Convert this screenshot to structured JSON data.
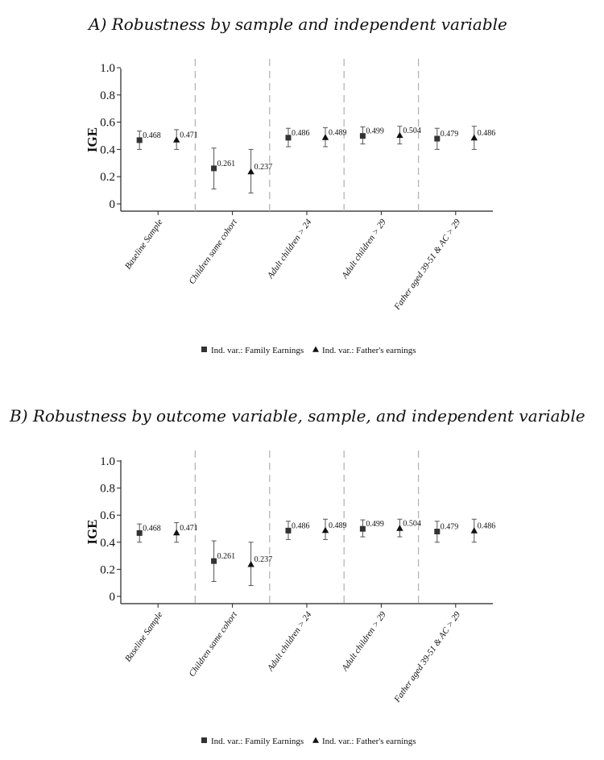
{
  "chart_data": [
    {
      "type": "scatter",
      "title": "A) Robustness by sample and independent variable",
      "xlabel": "",
      "ylabel": "IGE",
      "ylim": [
        0,
        1.0
      ],
      "yticks": [
        "0",
        "0.2",
        "0.4",
        "0.6",
        "0.8",
        "1.0"
      ],
      "categories": [
        "Baseline Sample",
        "Children same cohort",
        "Adult children > 24",
        "Adult children > 29",
        "Father aged 39-51 & AC > 29"
      ],
      "series": [
        {
          "name": "Ind. var.: Family Earnings",
          "marker": "square",
          "values": [
            0.468,
            0.261,
            0.486,
            0.499,
            0.479
          ],
          "labels": [
            "0.468",
            "0.261",
            "0.486",
            "0.499",
            "0.479"
          ],
          "ci_low": [
            0.4,
            0.11,
            0.42,
            0.44,
            0.4
          ],
          "ci_high": [
            0.535,
            0.41,
            0.555,
            0.565,
            0.555
          ]
        },
        {
          "name": "Ind. var.: Father's earnings",
          "marker": "triangle",
          "values": [
            0.471,
            0.237,
            0.489,
            0.504,
            0.486
          ],
          "labels": [
            "0.471",
            "0.237",
            "0.489",
            "0.504",
            "0.486"
          ],
          "ci_low": [
            0.4,
            0.08,
            0.42,
            0.44,
            0.4
          ],
          "ci_high": [
            0.545,
            0.4,
            0.56,
            0.57,
            0.57
          ]
        }
      ],
      "grid": false,
      "separators": "dashed-vertical",
      "legend": "bottom"
    },
    {
      "type": "scatter",
      "title": "B) Robustness by outcome variable, sample, and independent variable",
      "xlabel": "",
      "ylabel": "IGE",
      "ylim": [
        0,
        1.0
      ],
      "yticks": [
        "0",
        "0.2",
        "0.4",
        "0.6",
        "0.8",
        "1.0"
      ],
      "categories": [
        "Baseline Sample",
        "Children same cohort",
        "Adult children > 24",
        "Adult children > 29",
        "Father aged 39-51 & AC > 29"
      ],
      "series": [
        {
          "name": "Ind. var.: Family Earnings",
          "marker": "square",
          "values": [
            0.468,
            0.261,
            0.486,
            0.499,
            0.479
          ],
          "labels": [
            "0.468",
            "0.261",
            "0.486",
            "0.499",
            "0.479"
          ],
          "ci_low": [
            0.4,
            0.11,
            0.42,
            0.44,
            0.4
          ],
          "ci_high": [
            0.535,
            0.41,
            0.555,
            0.565,
            0.555
          ]
        },
        {
          "name": "Ind. var.: Father's earnings",
          "marker": "triangle",
          "values": [
            0.471,
            0.237,
            0.489,
            0.504,
            0.486
          ],
          "labels": [
            "0.471",
            "0.237",
            "0.489",
            "0.504",
            "0.486"
          ],
          "ci_low": [
            0.4,
            0.08,
            0.42,
            0.44,
            0.4
          ],
          "ci_high": [
            0.545,
            0.4,
            0.57,
            0.57,
            0.57
          ]
        }
      ],
      "grid": false,
      "separators": "dashed-vertical",
      "legend": "bottom"
    }
  ]
}
